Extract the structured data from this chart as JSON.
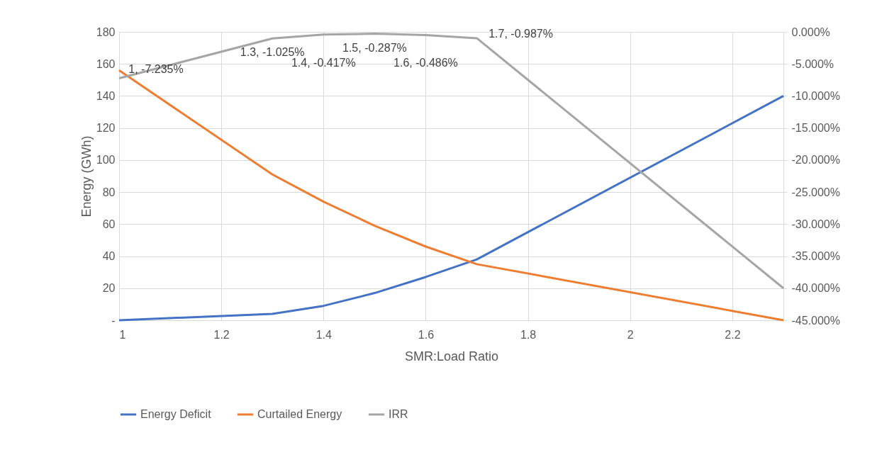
{
  "chart_data": {
    "type": "line",
    "xlabel": "SMR:Load Ratio",
    "ylabel": "Energy (GWh)",
    "x": [
      1,
      1.3,
      1.4,
      1.5,
      1.6,
      1.7,
      2.3
    ],
    "xlim": [
      1,
      2.3
    ],
    "xticks": [
      1,
      1.2,
      1.4,
      1.6,
      1.8,
      2,
      2.2
    ],
    "ylim": [
      0,
      180
    ],
    "yticks": [
      {
        "value": 0,
        "label": "-"
      },
      20,
      40,
      60,
      80,
      100,
      120,
      140,
      160,
      180
    ],
    "y2lim": [
      -45,
      0
    ],
    "y2ticks": [
      {
        "value": 0,
        "label": "0.000%"
      },
      {
        "value": -5,
        "label": "-5.000%"
      },
      {
        "value": -10,
        "label": "-10.000%"
      },
      {
        "value": -15,
        "label": "-15.000%"
      },
      {
        "value": -20,
        "label": "-20.000%"
      },
      {
        "value": -25,
        "label": "-25.000%"
      },
      {
        "value": -30,
        "label": "-30.000%"
      },
      {
        "value": -35,
        "label": "-35.000%"
      },
      {
        "value": -40,
        "label": "-40.000%"
      },
      {
        "value": -45,
        "label": "-45.000%"
      }
    ],
    "grid": true,
    "legend": "bottom",
    "series": [
      {
        "name": "Energy Deficit",
        "color": "#4472c4",
        "values": [
          0,
          4,
          9,
          17,
          27,
          38,
          140
        ]
      },
      {
        "name": "Curtailed Energy",
        "color": "#ed7d31",
        "values": [
          156,
          91,
          74,
          59,
          46,
          35,
          0
        ]
      },
      {
        "name": "IRR",
        "color": "#a5a5a5",
        "axis": "y2",
        "values": [
          -7.235,
          -1.025,
          -0.417,
          -0.287,
          -0.486,
          -0.987,
          -40
        ],
        "value_labels": [
          "1, -7.235%",
          "1.3, -1.025%",
          "1.4, -0.417%",
          "1.5, -0.287%",
          "1.6, -0.486%",
          "1.7, -0.987%",
          null
        ]
      }
    ]
  }
}
